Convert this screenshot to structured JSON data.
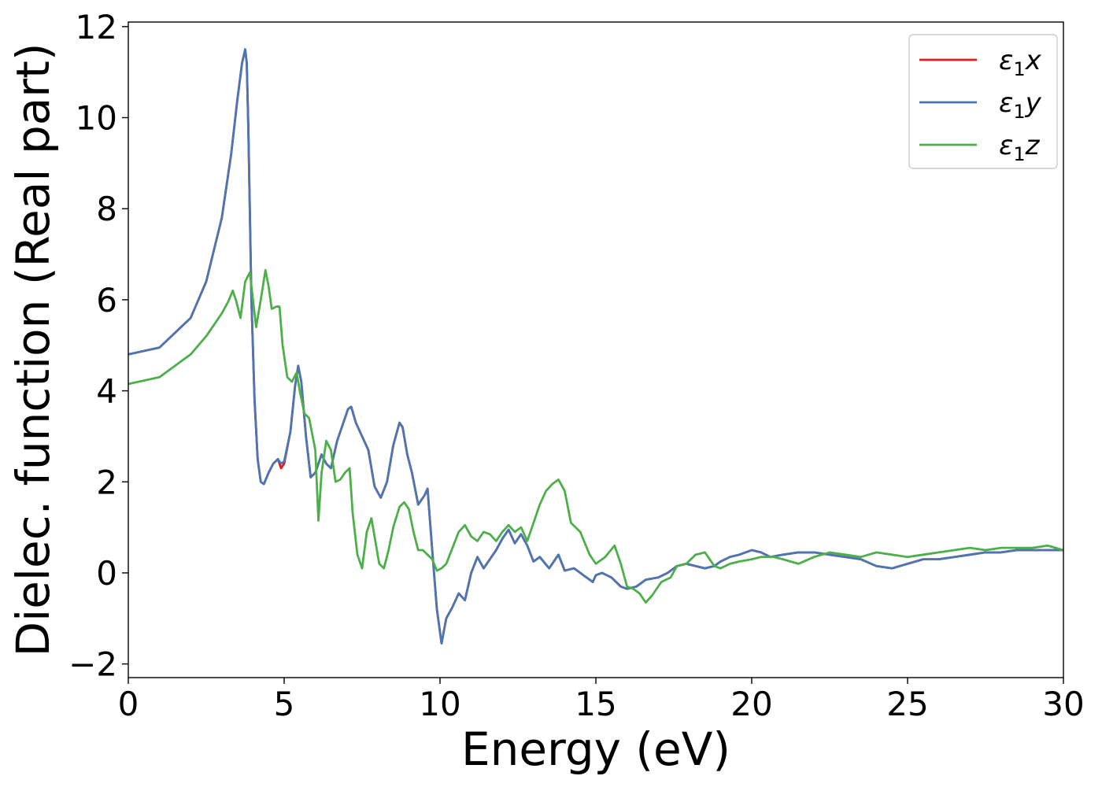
{
  "chart_data": {
    "type": "line",
    "title": "",
    "xlabel": "Energy (eV)",
    "ylabel": "Dielec. function (Real part)",
    "xlim": [
      0,
      30
    ],
    "ylim": [
      -2.3,
      12.1
    ],
    "xticks": [
      0,
      5,
      10,
      15,
      20,
      25,
      30
    ],
    "yticks": [
      -2,
      0,
      2,
      4,
      6,
      8,
      10,
      12
    ],
    "xtick_labels": [
      "0",
      "5",
      "10",
      "15",
      "20",
      "25",
      "30"
    ],
    "ytick_labels": [
      "−2",
      "0",
      "2",
      "4",
      "6",
      "8",
      "10",
      "12"
    ],
    "grid": false,
    "legend_position": "top-right",
    "series": [
      {
        "name": "ε₁x",
        "legend_base": "ε",
        "legend_sub": "1",
        "legend_var": "x",
        "color": "#e41a1c",
        "x": [
          0,
          1,
          2,
          2.5,
          3,
          3.3,
          3.5,
          3.65,
          3.75,
          3.8,
          3.85,
          3.95,
          4.05,
          4.15,
          4.25,
          4.35,
          4.5,
          4.65,
          4.8,
          4.9,
          5.0,
          5.2,
          5.35,
          5.45,
          5.55,
          5.7,
          5.85,
          6.0,
          6.2,
          6.35,
          6.5,
          6.7,
          6.9,
          7.05,
          7.15,
          7.3,
          7.5,
          7.7,
          7.9,
          8.1,
          8.3,
          8.5,
          8.7,
          8.8,
          8.95,
          9.1,
          9.3,
          9.5,
          9.6,
          9.75,
          9.9,
          10.05,
          10.2,
          10.4,
          10.6,
          10.8,
          11.0,
          11.2,
          11.4,
          11.6,
          11.8,
          12.0,
          12.2,
          12.4,
          12.6,
          12.8,
          13.0,
          13.2,
          13.5,
          13.8,
          14.0,
          14.3,
          14.6,
          14.9,
          15.0,
          15.2,
          15.5,
          15.8,
          16.0,
          16.3,
          16.6,
          17.0,
          17.3,
          17.6,
          17.9,
          18.2,
          18.5,
          18.8,
          19.0,
          19.3,
          19.6,
          20.0,
          20.3,
          20.6,
          21.0,
          21.5,
          22.0,
          22.5,
          23.0,
          23.5,
          24.0,
          24.5,
          25.0,
          25.5,
          26.0,
          26.5,
          27.0,
          27.5,
          28.0,
          28.5,
          29.0,
          29.5,
          30.0
        ],
        "values": [
          4.8,
          4.95,
          5.6,
          6.4,
          7.8,
          9.2,
          10.4,
          11.2,
          11.5,
          11.2,
          9.8,
          6.0,
          3.8,
          2.5,
          2.0,
          1.95,
          2.2,
          2.4,
          2.5,
          2.3,
          2.4,
          3.1,
          4.1,
          4.55,
          4.2,
          3.0,
          2.1,
          2.2,
          2.6,
          2.4,
          2.3,
          2.9,
          3.3,
          3.6,
          3.65,
          3.3,
          3.0,
          2.7,
          1.9,
          1.65,
          2.0,
          2.8,
          3.3,
          3.2,
          2.6,
          2.2,
          1.5,
          1.7,
          1.85,
          0.5,
          -0.8,
          -1.55,
          -1.0,
          -0.75,
          -0.45,
          -0.6,
          0.0,
          0.35,
          0.1,
          0.3,
          0.5,
          0.75,
          0.95,
          0.65,
          0.85,
          0.6,
          0.25,
          0.35,
          0.1,
          0.4,
          0.05,
          0.1,
          -0.05,
          -0.2,
          -0.05,
          0.0,
          -0.1,
          -0.3,
          -0.35,
          -0.3,
          -0.15,
          -0.1,
          0.0,
          0.15,
          0.2,
          0.15,
          0.1,
          0.15,
          0.25,
          0.35,
          0.4,
          0.5,
          0.45,
          0.35,
          0.4,
          0.45,
          0.45,
          0.4,
          0.35,
          0.3,
          0.15,
          0.1,
          0.2,
          0.3,
          0.3,
          0.35,
          0.4,
          0.45,
          0.45,
          0.5,
          0.5,
          0.5,
          0.5
        ]
      },
      {
        "name": "ε₁y",
        "legend_base": "ε",
        "legend_sub": "1",
        "legend_var": "y",
        "color": "#4a77b4",
        "x": [
          0,
          1,
          2,
          2.5,
          3,
          3.3,
          3.5,
          3.65,
          3.75,
          3.8,
          3.85,
          3.95,
          4.05,
          4.15,
          4.25,
          4.35,
          4.5,
          4.65,
          4.8,
          4.9,
          5.0,
          5.2,
          5.35,
          5.45,
          5.55,
          5.7,
          5.85,
          6.0,
          6.2,
          6.35,
          6.5,
          6.7,
          6.9,
          7.05,
          7.15,
          7.3,
          7.5,
          7.7,
          7.9,
          8.1,
          8.3,
          8.5,
          8.7,
          8.8,
          8.95,
          9.1,
          9.3,
          9.5,
          9.6,
          9.75,
          9.9,
          10.05,
          10.2,
          10.4,
          10.6,
          10.8,
          11.0,
          11.2,
          11.4,
          11.6,
          11.8,
          12.0,
          12.2,
          12.4,
          12.6,
          12.8,
          13.0,
          13.2,
          13.5,
          13.8,
          14.0,
          14.3,
          14.6,
          14.9,
          15.0,
          15.2,
          15.5,
          15.8,
          16.0,
          16.3,
          16.6,
          17.0,
          17.3,
          17.6,
          17.9,
          18.2,
          18.5,
          18.8,
          19.0,
          19.3,
          19.6,
          20.0,
          20.3,
          20.6,
          21.0,
          21.5,
          22.0,
          22.5,
          23.0,
          23.5,
          24.0,
          24.5,
          25.0,
          25.5,
          26.0,
          26.5,
          27.0,
          27.5,
          28.0,
          28.5,
          29.0,
          29.5,
          30.0
        ],
        "values": [
          4.8,
          4.95,
          5.6,
          6.4,
          7.8,
          9.2,
          10.4,
          11.2,
          11.5,
          11.2,
          9.8,
          6.0,
          3.8,
          2.5,
          2.0,
          1.95,
          2.2,
          2.4,
          2.5,
          2.4,
          2.45,
          3.1,
          4.1,
          4.55,
          4.2,
          3.0,
          2.1,
          2.2,
          2.6,
          2.4,
          2.3,
          2.9,
          3.3,
          3.6,
          3.65,
          3.3,
          3.0,
          2.7,
          1.9,
          1.65,
          2.0,
          2.8,
          3.3,
          3.2,
          2.6,
          2.2,
          1.5,
          1.7,
          1.85,
          0.5,
          -0.8,
          -1.55,
          -1.0,
          -0.75,
          -0.45,
          -0.6,
          0.0,
          0.35,
          0.1,
          0.3,
          0.5,
          0.75,
          0.95,
          0.65,
          0.85,
          0.6,
          0.25,
          0.35,
          0.1,
          0.4,
          0.05,
          0.1,
          -0.05,
          -0.2,
          -0.05,
          0.0,
          -0.1,
          -0.3,
          -0.35,
          -0.3,
          -0.15,
          -0.1,
          0.0,
          0.15,
          0.2,
          0.15,
          0.1,
          0.15,
          0.25,
          0.35,
          0.4,
          0.5,
          0.45,
          0.35,
          0.4,
          0.45,
          0.45,
          0.4,
          0.35,
          0.3,
          0.15,
          0.1,
          0.2,
          0.3,
          0.3,
          0.35,
          0.4,
          0.45,
          0.45,
          0.5,
          0.5,
          0.5,
          0.5
        ]
      },
      {
        "name": "ε₁z",
        "legend_base": "ε",
        "legend_sub": "1",
        "legend_var": "z",
        "color": "#4daf4a",
        "x": [
          0,
          1,
          2,
          2.5,
          3.0,
          3.2,
          3.35,
          3.45,
          3.6,
          3.75,
          3.9,
          4.0,
          4.1,
          4.25,
          4.4,
          4.5,
          4.6,
          4.75,
          4.85,
          4.95,
          5.1,
          5.25,
          5.4,
          5.5,
          5.65,
          5.8,
          6.0,
          6.1,
          6.2,
          6.35,
          6.5,
          6.65,
          6.8,
          6.95,
          7.1,
          7.2,
          7.35,
          7.5,
          7.65,
          7.8,
          7.9,
          8.05,
          8.2,
          8.35,
          8.5,
          8.7,
          8.85,
          9.0,
          9.15,
          9.3,
          9.45,
          9.6,
          9.75,
          9.9,
          10.05,
          10.2,
          10.4,
          10.6,
          10.8,
          11.0,
          11.2,
          11.4,
          11.6,
          11.8,
          12.0,
          12.2,
          12.4,
          12.6,
          12.8,
          13.0,
          13.2,
          13.4,
          13.6,
          13.8,
          14.0,
          14.2,
          14.5,
          14.8,
          15.0,
          15.3,
          15.6,
          15.8,
          16.0,
          16.2,
          16.4,
          16.6,
          16.8,
          17.1,
          17.4,
          17.6,
          17.9,
          18.2,
          18.5,
          18.8,
          19.0,
          19.3,
          19.6,
          20.0,
          20.3,
          20.7,
          21.0,
          21.5,
          22.0,
          22.5,
          23.0,
          23.5,
          24.0,
          24.5,
          25.0,
          25.5,
          26.0,
          26.5,
          27.0,
          27.5,
          28.0,
          28.5,
          29.0,
          29.5,
          30.0
        ],
        "values": [
          4.15,
          4.3,
          4.8,
          5.2,
          5.7,
          5.95,
          6.2,
          6.0,
          5.6,
          6.4,
          6.6,
          6.0,
          5.4,
          6.0,
          6.65,
          6.3,
          5.8,
          5.85,
          5.85,
          5.0,
          4.3,
          4.2,
          4.4,
          4.0,
          3.5,
          3.4,
          2.7,
          1.15,
          2.2,
          2.9,
          2.7,
          2.0,
          2.05,
          2.2,
          2.3,
          1.3,
          0.4,
          0.1,
          0.9,
          1.2,
          0.8,
          0.2,
          0.1,
          0.5,
          1.0,
          1.45,
          1.55,
          1.4,
          0.9,
          0.5,
          0.5,
          0.4,
          0.3,
          0.05,
          0.1,
          0.2,
          0.55,
          0.9,
          1.05,
          0.8,
          0.7,
          0.9,
          0.85,
          0.7,
          0.9,
          1.05,
          0.9,
          1.0,
          0.7,
          1.1,
          1.5,
          1.8,
          1.95,
          2.05,
          1.8,
          1.1,
          0.9,
          0.4,
          0.2,
          0.35,
          0.6,
          0.2,
          -0.3,
          -0.35,
          -0.45,
          -0.65,
          -0.5,
          -0.2,
          -0.1,
          0.15,
          0.2,
          0.4,
          0.45,
          0.15,
          0.1,
          0.2,
          0.25,
          0.3,
          0.35,
          0.35,
          0.3,
          0.2,
          0.35,
          0.45,
          0.4,
          0.35,
          0.45,
          0.4,
          0.35,
          0.4,
          0.45,
          0.5,
          0.55,
          0.5,
          0.55,
          0.55,
          0.55,
          0.6,
          0.5
        ]
      }
    ]
  }
}
